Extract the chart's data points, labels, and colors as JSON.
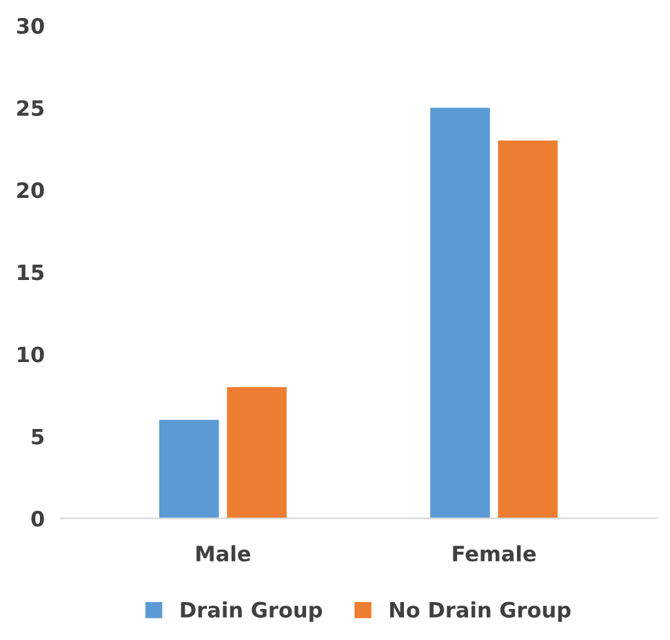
{
  "chart_data": {
    "type": "bar",
    "categories": [
      "Male",
      "Female"
    ],
    "series": [
      {
        "name": "Drain Group",
        "color": "#5b9bd5",
        "values": [
          6,
          25
        ]
      },
      {
        "name": "No Drain Group",
        "color": "#ed7d31",
        "values": [
          8,
          23
        ]
      }
    ],
    "ylim": [
      0,
      30
    ],
    "yticks": [
      0,
      5,
      10,
      15,
      20,
      25,
      30
    ],
    "grid": false,
    "legend": "bottom"
  }
}
